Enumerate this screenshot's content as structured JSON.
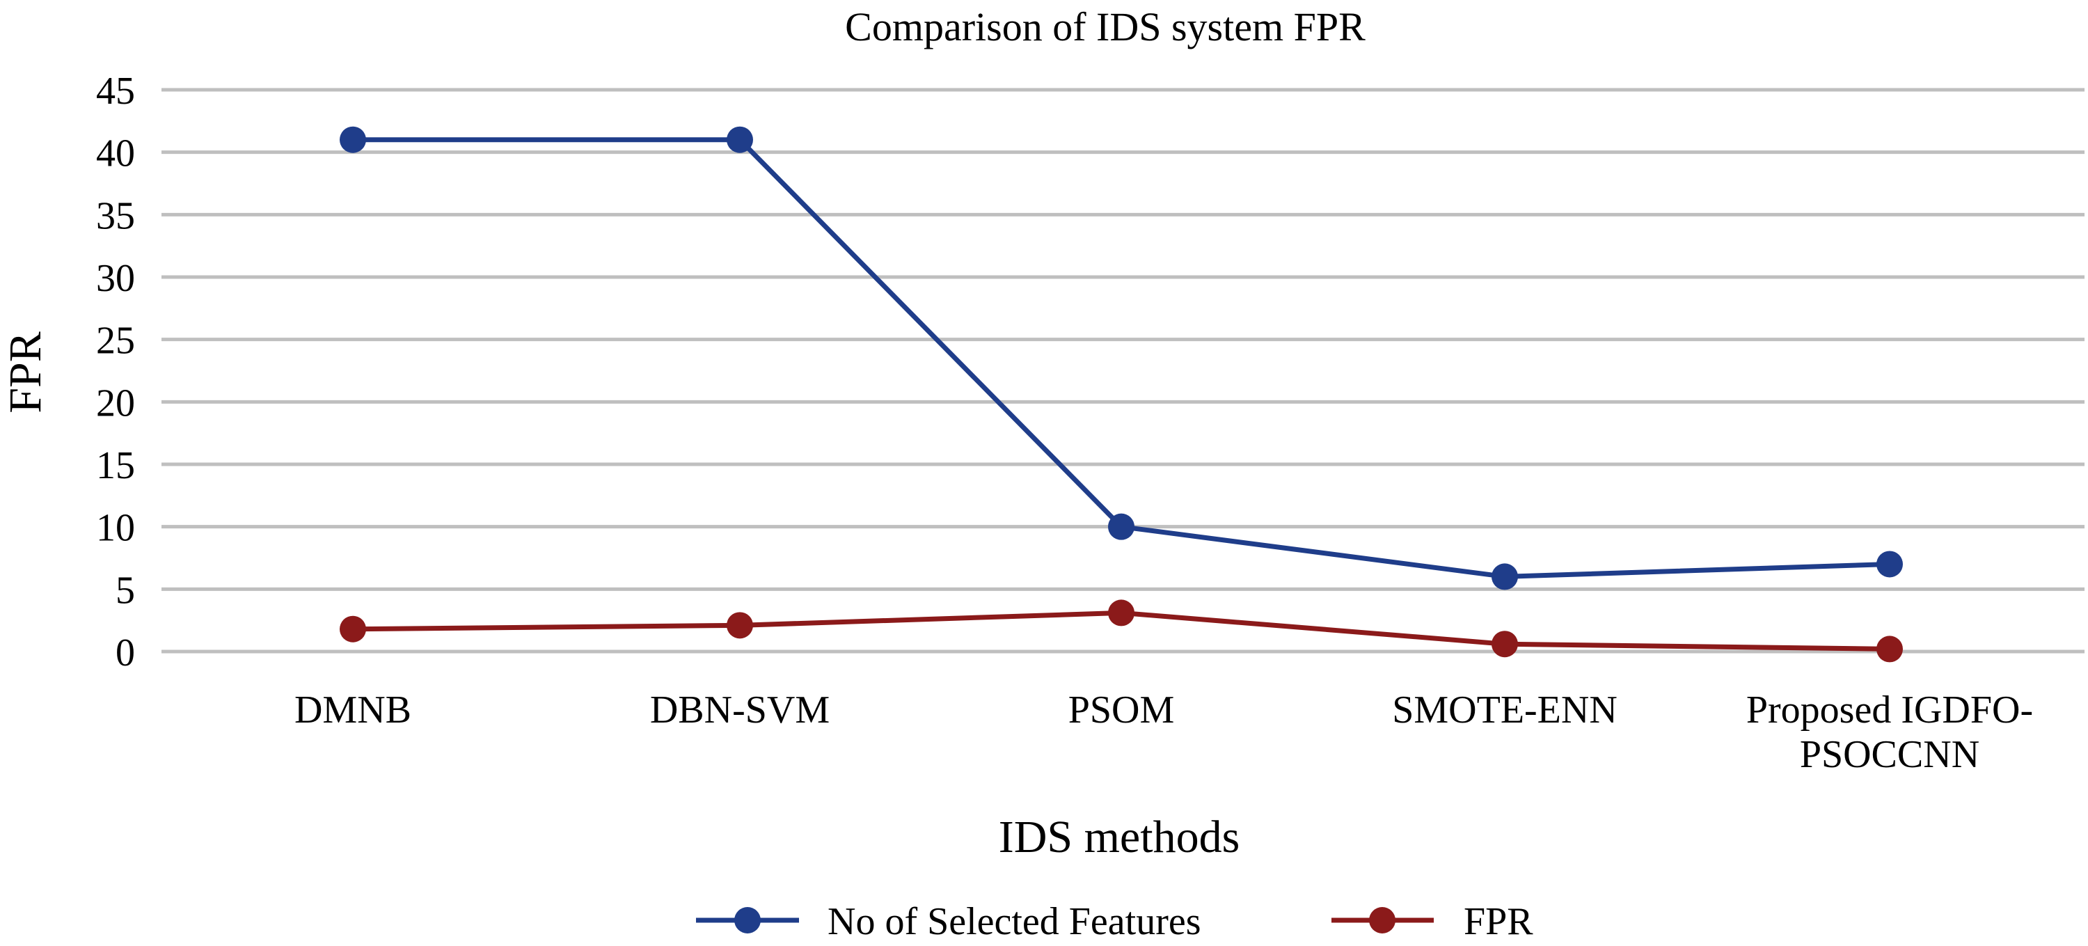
{
  "chart_data": {
    "type": "line",
    "title": "Comparison of IDS system FPR",
    "xlabel": "IDS methods",
    "ylabel": "FPR",
    "ylim": [
      0,
      45
    ],
    "yticks": [
      0,
      5,
      10,
      15,
      20,
      25,
      30,
      35,
      40,
      45
    ],
    "grid": true,
    "legend_position": "bottom",
    "categories": [
      [
        "DMNB"
      ],
      [
        "DBN-SVM"
      ],
      [
        "PSOM"
      ],
      [
        "SMOTE-ENN"
      ],
      [
        "Proposed IGDFO-",
        "PSOCCNN"
      ]
    ],
    "series": [
      {
        "name": "No of Selected Features",
        "color": "#1f3d8a",
        "values": [
          41,
          41,
          10,
          6,
          7
        ]
      },
      {
        "name": "FPR",
        "color": "#8b1a1a",
        "values": [
          1.8,
          2.1,
          3.1,
          0.6,
          0.2
        ]
      }
    ]
  }
}
